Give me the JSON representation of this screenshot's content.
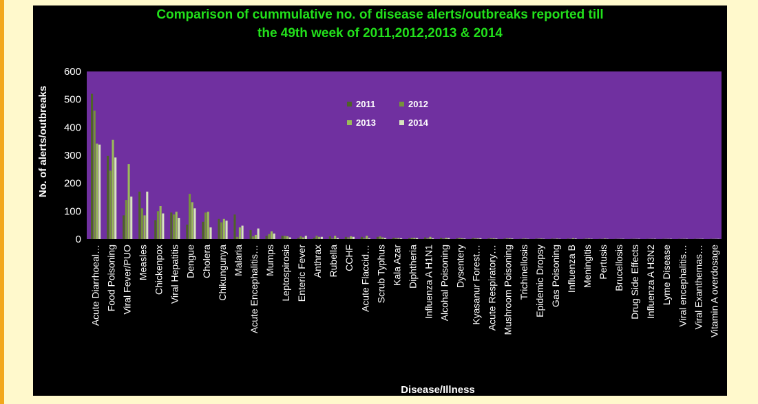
{
  "chart_data": {
    "type": "bar",
    "title_lines": [
      "Comparison of cummulative no. of disease alerts/outbreaks reported till",
      "the 49th week of 2011,2012,2013 & 2014"
    ],
    "xlabel": "Disease/Illness",
    "ylabel": "No. of alerts/outbreaks",
    "ylim": [
      0,
      600
    ],
    "yticks": [
      0,
      100,
      200,
      300,
      400,
      500,
      600
    ],
    "grid": false,
    "legend_position": "top-center",
    "plot_background": "#7030a0",
    "categories": [
      "Acute Diarrhoeal…",
      "Food Poisoning",
      "Viral Fever/PUO",
      "Measles",
      "Chickenpox",
      "Viral Hepatitis",
      "Dengue",
      "Cholera",
      "Chikungunya",
      "Malaria",
      "Acute Encephalitis…",
      "Mumps",
      "Leptospirosis",
      "Enteric Fever",
      "Anthrax",
      "Rubella",
      "CCHF",
      "Acute Flaccid…",
      "Scrub Typhus",
      "Kala Azar",
      "Diphtheria",
      "Influenza A H1N1",
      "Alcohal Poisoning",
      "Dysentery",
      "Kyasanur Forest…",
      "Acute Respiratory…",
      "Mushroom Poisoning",
      "Trichinellosis",
      "Epidemic Dropsy",
      "Gas Poisoning",
      "Influenza B",
      "Meningitis",
      "Pertusis",
      "Brucellosis",
      "Drug Side Effects",
      "Influenza A H3N2",
      "Lyme Disease",
      "Viral encephalitis…",
      "Viral Exanthemas…",
      "Vitamin A overdosage"
    ],
    "series": [
      {
        "name": "2011",
        "color": "#4f6228",
        "values": [
          520,
          298,
          85,
          170,
          68,
          95,
          52,
          62,
          72,
          88,
          32,
          12,
          12,
          5,
          5,
          10,
          8,
          8,
          8,
          5,
          4,
          6,
          5,
          3,
          4,
          3,
          2,
          1,
          2,
          2,
          2,
          1,
          1,
          1,
          1,
          1,
          1,
          1,
          1,
          1
        ]
      },
      {
        "name": "2012",
        "color": "#76923c",
        "values": [
          460,
          245,
          140,
          110,
          100,
          88,
          162,
          95,
          60,
          8,
          10,
          18,
          12,
          10,
          12,
          3,
          6,
          4,
          10,
          4,
          5,
          4,
          2,
          5,
          3,
          3,
          3,
          2,
          2,
          1,
          1,
          2,
          1,
          1,
          1,
          1,
          1,
          1,
          1,
          1
        ]
      },
      {
        "name": "2013",
        "color": "#9bbb59",
        "values": [
          342,
          355,
          268,
          85,
          118,
          98,
          132,
          98,
          72,
          42,
          15,
          28,
          10,
          6,
          8,
          12,
          10,
          12,
          6,
          4,
          5,
          8,
          5,
          3,
          3,
          3,
          3,
          2,
          2,
          2,
          3,
          2,
          2,
          1,
          1,
          1,
          1,
          1,
          1,
          1
        ]
      },
      {
        "name": "2014",
        "color": "#d7e4bd",
        "values": [
          338,
          292,
          152,
          170,
          92,
          76,
          110,
          42,
          66,
          48,
          38,
          20,
          6,
          12,
          8,
          4,
          8,
          3,
          4,
          3,
          4,
          3,
          4,
          2,
          3,
          2,
          2,
          1,
          1,
          1,
          2,
          1,
          1,
          1,
          1,
          1,
          1,
          1,
          1,
          1
        ]
      }
    ]
  }
}
